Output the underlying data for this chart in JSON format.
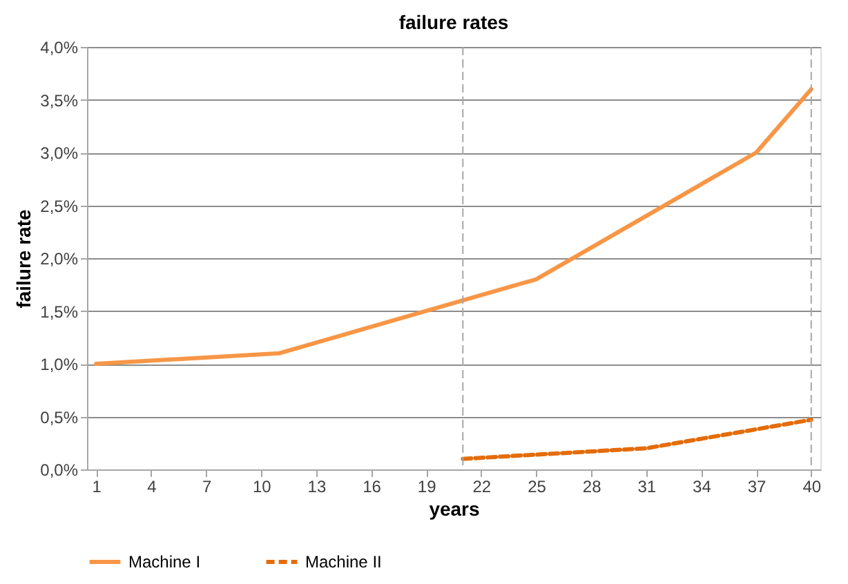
{
  "chart_data": {
    "type": "line",
    "title": "failure rates",
    "xlabel": "years",
    "ylabel": "failure rate",
    "xlim": [
      0.5,
      40.5
    ],
    "xticks": [
      1,
      4,
      7,
      10,
      13,
      16,
      19,
      22,
      25,
      28,
      31,
      34,
      37,
      40
    ],
    "ylim": [
      0,
      4
    ],
    "yticks": [
      {
        "value": 0,
        "label": "0,0%"
      },
      {
        "value": 0.5,
        "label": "0,5%"
      },
      {
        "value": 1,
        "label": "1,0%"
      },
      {
        "value": 1.5,
        "label": "1,5%"
      },
      {
        "value": 2,
        "label": "2,0%"
      },
      {
        "value": 2.5,
        "label": "2,5%"
      },
      {
        "value": 3,
        "label": "3,0%"
      },
      {
        "value": 3.5,
        "label": "3,5%"
      },
      {
        "value": 4,
        "label": "4,0%"
      }
    ],
    "grid": "y",
    "legend": "bottom",
    "marker": "none",
    "ref_lines": [
      {
        "axis": "x",
        "value": 21,
        "color": "#a6a6a6",
        "line_style": "dashed"
      },
      {
        "axis": "x",
        "value": 40,
        "color": "#a6a6a6",
        "line_style": "dashed"
      }
    ],
    "series": [
      {
        "name": "Machine I",
        "color": "#f79646",
        "line_style": "solid",
        "x": [
          1,
          11,
          21,
          25,
          37,
          40
        ],
        "values": [
          1.0,
          1.1,
          1.6,
          1.8,
          3.0,
          3.6
        ]
      },
      {
        "name": "Machine II",
        "color": "#e46c0a",
        "line_style": "dashed",
        "x": [
          21,
          31,
          37,
          40
        ],
        "values": [
          0.1,
          0.2,
          0.38,
          0.47
        ]
      }
    ]
  }
}
